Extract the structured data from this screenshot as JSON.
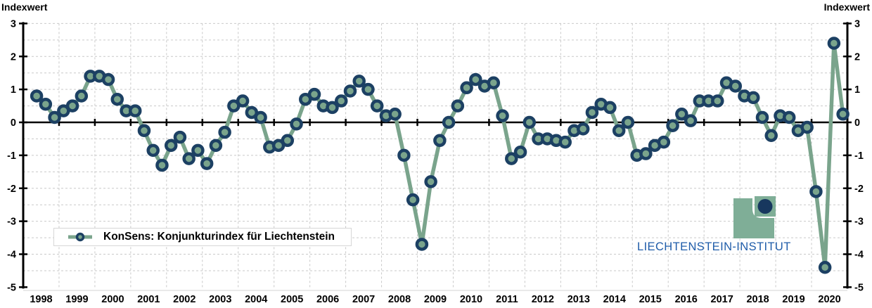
{
  "page": {
    "axis_label_left": "Indexwert",
    "axis_label_right": "Indexwert"
  },
  "legend": {
    "label": "KonSens: Konjunkturindex für Liechtenstein"
  },
  "logo": {
    "text": "LIECHTENSTEIN-INSTITUT"
  },
  "colors": {
    "line": "#7aa48c",
    "marker_ring": "#1c4063",
    "marker_fill": "#7aa48c",
    "grid": "#c9c9c9",
    "axis": "#000000",
    "zero_line": "#000000",
    "bottom_edge": "#e2e2e2",
    "legend_border": "#d7d7d7",
    "logo_green": "#7fae97",
    "logo_navy": "#17375e",
    "logo_text_blue": "#1f5ca9",
    "tick_text": "#000000"
  },
  "chart_data": {
    "type": "line",
    "title": "",
    "xlabel": "",
    "ylabel": "Indexwert",
    "ylim": [
      -5,
      3
    ],
    "yticks": [
      3,
      2,
      1,
      0,
      -1,
      -2,
      -3,
      -4,
      -5
    ],
    "ygrid_step": 0.5,
    "grid": true,
    "legend_position": "inside bottom-left",
    "frequency": "quarterly",
    "start_quarter": "1998-Q2",
    "end_quarter": "2020-Q4",
    "xtick_labels": [
      "1998",
      "1999",
      "2000",
      "2001",
      "2002",
      "2003",
      "2004",
      "2005",
      "2006",
      "2007",
      "2008",
      "2009",
      "2010",
      "2011",
      "2012",
      "2013",
      "2014",
      "2015",
      "2016",
      "2017",
      "2018",
      "2019",
      "2020"
    ],
    "series": [
      {
        "name": "KonSens: Konjunkturindex für Liechtenstein",
        "values": [
          0.8,
          0.55,
          0.15,
          0.35,
          0.5,
          0.8,
          1.4,
          1.4,
          1.3,
          0.7,
          0.35,
          0.35,
          -0.25,
          -0.85,
          -1.3,
          -0.7,
          -0.45,
          -1.1,
          -0.85,
          -1.25,
          -0.7,
          -0.3,
          0.5,
          0.65,
          0.3,
          0.15,
          -0.75,
          -0.7,
          -0.55,
          -0.05,
          0.7,
          0.85,
          0.5,
          0.45,
          0.65,
          0.95,
          1.25,
          1.0,
          0.5,
          0.2,
          0.25,
          -1.0,
          -2.35,
          -3.7,
          -1.8,
          -0.55,
          0.0,
          0.5,
          1.05,
          1.3,
          1.1,
          1.2,
          0.2,
          -1.1,
          -0.9,
          0.0,
          -0.5,
          -0.5,
          -0.55,
          -0.6,
          -0.25,
          -0.2,
          0.3,
          0.55,
          0.45,
          -0.25,
          0.0,
          -1.0,
          -0.95,
          -0.7,
          -0.6,
          -0.1,
          0.25,
          0.05,
          0.65,
          0.65,
          0.65,
          1.2,
          1.1,
          0.8,
          0.75,
          0.15,
          -0.4,
          0.2,
          0.15,
          -0.25,
          -0.15,
          -2.1,
          -4.4,
          2.4,
          0.25
        ]
      }
    ]
  }
}
